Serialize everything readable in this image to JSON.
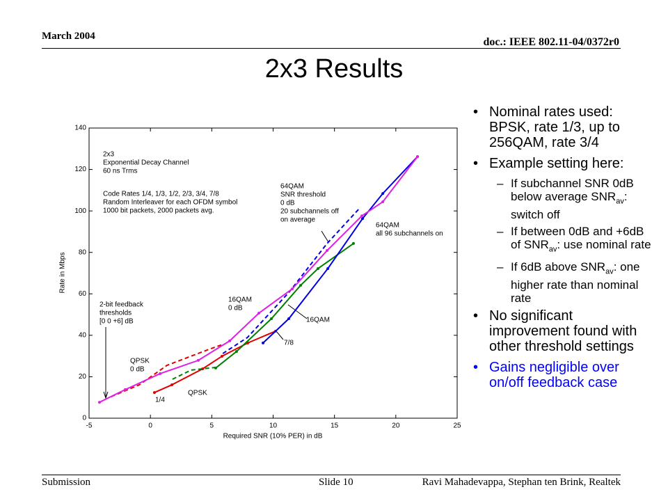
{
  "header": {
    "date": "March 2004",
    "doc": "doc.: IEEE 802.11-04/0372r0"
  },
  "title": "2x3 Results",
  "chart_data": {
    "type": "line",
    "xlabel": "Required SNR (10% PER) in dB",
    "ylabel": "Rate in Mbps",
    "xlim": [
      -5,
      25
    ],
    "xticks": [
      -5,
      0,
      5,
      10,
      15,
      20,
      25
    ],
    "ylim": [
      0,
      140
    ],
    "yticks": [
      0,
      20,
      40,
      60,
      80,
      100,
      120,
      140
    ],
    "series": [
      {
        "color": "#e00000",
        "dash": false,
        "x": [
          0.33,
          1.75,
          4.25,
          5.83,
          7.93,
          10.2
        ],
        "values": [
          12.4,
          16.1,
          23.8,
          29.9,
          36.3,
          42.0
        ]
      },
      {
        "color": "#e00000",
        "dash": true,
        "x": [
          -3.2,
          -0.9,
          1.35,
          4.76,
          5.9
        ],
        "values": [
          10.4,
          16.1,
          25.5,
          33.2,
          35.6
        ]
      },
      {
        "color": "#008000",
        "dash": false,
        "x": [
          5.32,
          7.02,
          9.86,
          12.24,
          13.66,
          16.55
        ],
        "values": [
          24.2,
          32.2,
          48.0,
          64.1,
          72.2,
          84.3
        ]
      },
      {
        "color": "#008000",
        "dash": true,
        "x": [
          1.8,
          3.3,
          5.3
        ],
        "values": [
          18.8,
          23.2,
          24.5
        ]
      },
      {
        "color": "#0000e0",
        "dash": false,
        "x": [
          9.18,
          11.28,
          14.46,
          17.29,
          18.94,
          21.77
        ],
        "values": [
          36.3,
          48.0,
          72.2,
          96.3,
          108.4,
          126.2
        ]
      },
      {
        "color": "#0000e0",
        "dash": true,
        "x": [
          5.9,
          7.9,
          11.3,
          14.4,
          17.0
        ],
        "values": [
          31.2,
          38.9,
          60.8,
          84.3,
          101.0
        ]
      },
      {
        "color": "#e020e0",
        "dash": false,
        "x": [
          -4.15,
          -2.05,
          0.79,
          3.9,
          6.46,
          8.84,
          11.56,
          14.4,
          17.23,
          18.94,
          21.77
        ],
        "values": [
          7.7,
          13.8,
          21.5,
          27.9,
          37.3,
          50.7,
          62.4,
          80.9,
          97.6,
          104.4,
          126.2
        ]
      }
    ],
    "annotations": [
      [
        "2x3",
        "Exponential Decay Channel",
        "60 ns Trms"
      ],
      [
        "Code Rates 1/4, 1/3, 1/2, 2/3, 3/4, 7/8",
        "Random Interleaver for each OFDM symbol",
        "1000 bit packets, 2000 packets avg."
      ],
      [
        "64QAM",
        "SNR threshold",
        "0 dB",
        "20 subchannels off",
        "on average"
      ],
      [
        "64QAM",
        "all 96 subchannels on"
      ],
      [
        "2-bit feedback",
        "thresholds",
        "[0 0 +6] dB"
      ],
      [
        "16QAM",
        "0 dB"
      ],
      [
        "16QAM"
      ],
      [
        "7/8"
      ],
      [
        "QPSK",
        "0 dB"
      ],
      [
        "QPSK"
      ],
      [
        "1/4"
      ]
    ]
  },
  "bullets": [
    {
      "level": 1,
      "parts": [
        {
          "t": "Nominal rates used: BPSK, rate 1/3, up to 256QAM, rate 3/4"
        }
      ]
    },
    {
      "level": 1,
      "parts": [
        {
          "t": "Example setting here:"
        }
      ]
    },
    {
      "level": 2,
      "parts": [
        {
          "t": "If subchannel SNR 0dB below average SNR"
        },
        {
          "t": "av",
          "sub": true
        },
        {
          "t": ": switch off"
        }
      ]
    },
    {
      "level": 2,
      "parts": [
        {
          "t": "If between 0dB and +6dB of SNR"
        },
        {
          "t": "av",
          "sub": true
        },
        {
          "t": ": use nominal rate"
        }
      ]
    },
    {
      "level": 2,
      "parts": [
        {
          "t": "If 6dB above SNR"
        },
        {
          "t": "av",
          "sub": true
        },
        {
          "t": ": one higher rate than nominal rate"
        }
      ]
    },
    {
      "level": 1,
      "parts": [
        {
          "t": "No significant improvement found with other threshold settings"
        }
      ]
    },
    {
      "level": 1,
      "color": "#0000ff",
      "parts": [
        {
          "t": "Gains negligible over on/off feedback case"
        }
      ]
    }
  ],
  "footer": {
    "left": "Submission",
    "center": "Slide 10",
    "right": "Ravi Mahadevappa, Stephan ten Brink, Realtek"
  }
}
